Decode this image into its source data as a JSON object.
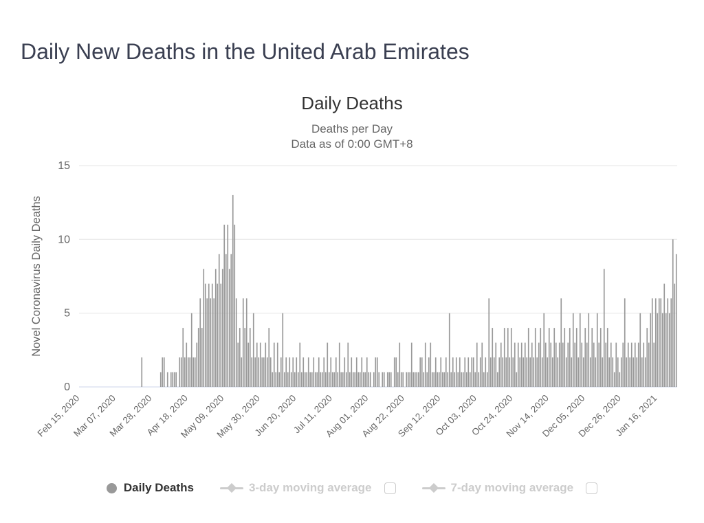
{
  "page": {
    "title": "Daily New Deaths in the United Arab Emirates"
  },
  "chart": {
    "title": "Daily Deaths",
    "subtitle1": "Deaths per Day",
    "subtitle2": "Data as of 0:00 GMT+8",
    "y_axis_title": "Novel Coronavirus Daily Deaths"
  },
  "legend": {
    "items": [
      {
        "label": "Daily Deaths",
        "enabled": true,
        "has_checkbox": false
      },
      {
        "label": "3-day moving average",
        "enabled": false,
        "has_checkbox": true,
        "checkbox_checked": false
      },
      {
        "label": "7-day moving average",
        "enabled": false,
        "has_checkbox": true,
        "checkbox_checked": false
      }
    ]
  },
  "colors": {
    "page_title": "#3a3f51",
    "chart_title": "#333333",
    "subtitle": "#666666",
    "axis_text": "#666666",
    "bar": "#999999",
    "gridline": "#e6e6e6",
    "axis_line": "#ccd6eb",
    "legend_active_text": "#333333",
    "legend_disabled": "#cccccc",
    "legend_marker": "#999999",
    "checkbox_border": "#cccccc"
  },
  "chart_data": {
    "type": "bar",
    "title": "Daily Deaths",
    "subtitle_lines": [
      "Deaths per Day",
      "Data as of 0:00 GMT+8"
    ],
    "xlabel": "",
    "ylabel": "Novel Coronavirus Daily Deaths",
    "ylim": [
      0,
      15
    ],
    "yticks": [
      0,
      5,
      10,
      15
    ],
    "grid": true,
    "legend_position": "bottom",
    "x_start_date": "2020-02-15",
    "x_end_date": "2021-01-27",
    "x_tick_interval_days": 21,
    "x_tick_labels": [
      "Feb 15, 2020",
      "Mar 07, 2020",
      "Mar 28, 2020",
      "Apr 18, 2020",
      "May 09, 2020",
      "May 30, 2020",
      "Jun 20, 2020",
      "Jul 11, 2020",
      "Aug 01, 2020",
      "Aug 22, 2020",
      "Sep 12, 2020",
      "Oct 03, 2020",
      "Oct 24, 2020",
      "Nov 14, 2020",
      "Dec 05, 2020",
      "Dec 26, 2020",
      "Jan 16, 2021"
    ],
    "series": [
      {
        "name": "Daily Deaths",
        "type": "column",
        "color": "#999999",
        "enabled": true,
        "values": [
          0,
          0,
          0,
          0,
          0,
          0,
          0,
          0,
          0,
          0,
          0,
          0,
          0,
          0,
          0,
          0,
          0,
          0,
          0,
          0,
          0,
          0,
          0,
          0,
          0,
          0,
          0,
          0,
          0,
          0,
          0,
          0,
          0,
          0,
          0,
          0,
          2,
          0,
          0,
          0,
          0,
          0,
          0,
          0,
          0,
          0,
          0,
          1,
          2,
          2,
          0,
          1,
          0,
          1,
          1,
          1,
          1,
          0,
          2,
          2,
          4,
          2,
          3,
          2,
          2,
          5,
          2,
          2,
          3,
          4,
          6,
          4,
          8,
          7,
          6,
          7,
          6,
          7,
          6,
          8,
          7,
          9,
          7,
          8,
          11,
          9,
          11,
          8,
          9,
          13,
          11,
          6,
          3,
          4,
          2,
          6,
          4,
          6,
          3,
          4,
          2,
          5,
          2,
          3,
          2,
          3,
          2,
          2,
          3,
          2,
          4,
          2,
          1,
          3,
          1,
          3,
          1,
          2,
          5,
          1,
          2,
          1,
          2,
          1,
          2,
          1,
          2,
          1,
          3,
          1,
          2,
          1,
          1,
          2,
          1,
          1,
          2,
          1,
          1,
          2,
          1,
          1,
          2,
          1,
          3,
          1,
          2,
          1,
          1,
          2,
          1,
          3,
          1,
          1,
          2,
          1,
          3,
          1,
          2,
          1,
          1,
          2,
          1,
          1,
          2,
          1,
          1,
          2,
          1,
          1,
          0,
          1,
          2,
          2,
          1,
          0,
          1,
          1,
          0,
          1,
          1,
          1,
          0,
          2,
          2,
          1,
          3,
          1,
          1,
          0,
          1,
          1,
          1,
          3,
          1,
          1,
          1,
          1,
          2,
          2,
          1,
          3,
          1,
          2,
          3,
          1,
          1,
          2,
          1,
          1,
          2,
          1,
          1,
          2,
          1,
          5,
          1,
          2,
          1,
          2,
          1,
          2,
          1,
          1,
          2,
          1,
          2,
          1,
          2,
          2,
          1,
          3,
          1,
          2,
          3,
          1,
          2,
          1,
          6,
          2,
          4,
          2,
          3,
          1,
          2,
          3,
          2,
          4,
          2,
          4,
          2,
          4,
          2,
          3,
          1,
          3,
          2,
          3,
          2,
          3,
          2,
          4,
          2,
          3,
          2,
          4,
          2,
          3,
          4,
          2,
          5,
          3,
          2,
          4,
          3,
          2,
          4,
          3,
          2,
          3,
          6,
          3,
          4,
          2,
          3,
          4,
          2,
          5,
          3,
          4,
          2,
          5,
          3,
          2,
          4,
          3,
          5,
          2,
          4,
          3,
          2,
          5,
          3,
          4,
          2,
          8,
          3,
          4,
          2,
          3,
          2,
          1,
          3,
          2,
          1,
          2,
          3,
          6,
          2,
          3,
          2,
          3,
          2,
          3,
          2,
          3,
          5,
          2,
          3,
          2,
          4,
          3,
          5,
          6,
          3,
          6,
          5,
          6,
          6,
          5,
          7,
          5,
          6,
          5,
          6,
          10,
          7,
          9
        ]
      },
      {
        "name": "3-day moving average",
        "type": "line",
        "color": "#cccccc",
        "enabled": false,
        "values": []
      },
      {
        "name": "7-day moving average",
        "type": "line",
        "color": "#cccccc",
        "enabled": false,
        "values": []
      }
    ]
  }
}
